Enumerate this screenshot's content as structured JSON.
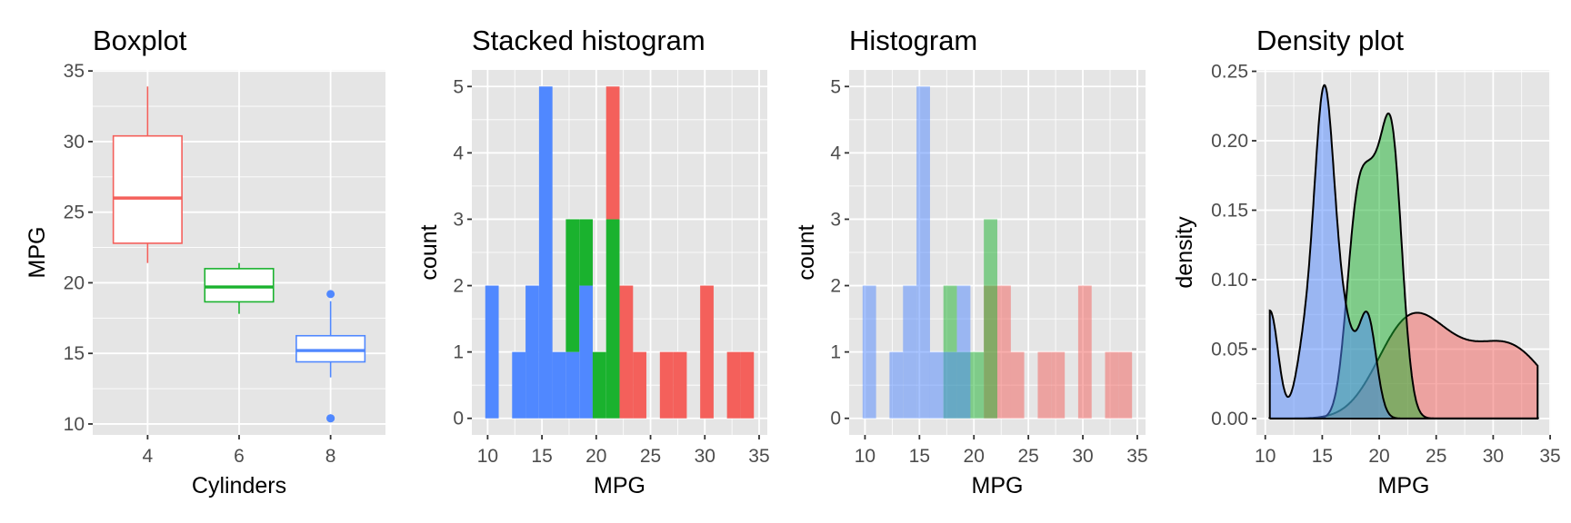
{
  "colors": {
    "cyl4": "#F4605B",
    "cyl6": "#1AB22E",
    "cyl8": "#5088FF",
    "panel_bg": "#E5E5E5",
    "grid": "#FFFFFF"
  },
  "chart_data": [
    {
      "type": "boxplot",
      "title": "Boxplot",
      "xlabel": "Cylinders",
      "ylabel": "MPG",
      "x_ticks": [
        "4",
        "6",
        "8"
      ],
      "y_ticks": [
        "10",
        "15",
        "20",
        "25",
        "30",
        "35"
      ],
      "ylim": [
        9.225,
        35.075
      ],
      "grid": true,
      "groups": [
        {
          "cyl": "4",
          "color": "#F4605B",
          "lower_whisker": 21.4,
          "q1": 22.8,
          "median": 26.0,
          "q3": 30.4,
          "upper_whisker": 33.9,
          "outliers": []
        },
        {
          "cyl": "6",
          "color": "#1AB22E",
          "lower_whisker": 17.8,
          "q1": 18.65,
          "median": 19.7,
          "q3": 21.0,
          "upper_whisker": 21.4,
          "outliers": []
        },
        {
          "cyl": "8",
          "color": "#5088FF",
          "lower_whisker": 13.3,
          "q1": 14.4,
          "median": 15.2,
          "q3": 16.25,
          "upper_whisker": 18.7,
          "outliers": [
            10.4,
            10.4,
            19.2
          ]
        }
      ]
    },
    {
      "type": "bar",
      "stacked": true,
      "title": "Stacked histogram",
      "xlabel": "MPG",
      "ylabel": "count",
      "x_ticks": [
        "10",
        "15",
        "20",
        "25",
        "30",
        "35"
      ],
      "y_ticks": [
        "0",
        "1",
        "2",
        "3",
        "4",
        "5"
      ],
      "xlim": [
        8.545,
        35.755
      ],
      "ylim": [
        -0.25,
        5.25
      ],
      "grid": true,
      "binwidth": 1.2368,
      "bin_centers": [
        10.4,
        11.64,
        12.87,
        14.11,
        15.35,
        16.58,
        17.82,
        19.06,
        20.29,
        21.53,
        22.77,
        24.0,
        25.24,
        26.48,
        27.72,
        28.95,
        30.19,
        31.43,
        32.66,
        33.9
      ],
      "series": [
        {
          "group": "8",
          "color": "#5088FF",
          "values": [
            2,
            0,
            1,
            2,
            5,
            1,
            1,
            2,
            0,
            0,
            0,
            0,
            0,
            0,
            0,
            0,
            0,
            0,
            0,
            0
          ]
        },
        {
          "group": "6",
          "color": "#1AB22E",
          "values": [
            0,
            0,
            0,
            0,
            0,
            0,
            2,
            1,
            1,
            3,
            0,
            0,
            0,
            0,
            0,
            0,
            0,
            0,
            0,
            0
          ]
        },
        {
          "group": "4",
          "color": "#F4605B",
          "values": [
            0,
            0,
            0,
            0,
            0,
            0,
            0,
            0,
            0,
            2,
            2,
            1,
            0,
            1,
            1,
            0,
            2,
            0,
            1,
            1
          ]
        }
      ]
    },
    {
      "type": "bar",
      "stacked": false,
      "alpha": 0.5,
      "title": "Histogram",
      "xlabel": "MPG",
      "ylabel": "count",
      "x_ticks": [
        "10",
        "15",
        "20",
        "25",
        "30",
        "35"
      ],
      "y_ticks": [
        "0",
        "1",
        "2",
        "3",
        "4",
        "5"
      ],
      "xlim": [
        8.545,
        35.755
      ],
      "ylim": [
        -0.25,
        5.25
      ],
      "grid": true,
      "binwidth": 1.2368,
      "bin_centers": [
        10.4,
        11.64,
        12.87,
        14.11,
        15.35,
        16.58,
        17.82,
        19.06,
        20.29,
        21.53,
        22.77,
        24.0,
        25.24,
        26.48,
        27.72,
        28.95,
        30.19,
        31.43,
        32.66,
        33.9
      ],
      "series": [
        {
          "group": "4",
          "color": "#F4605B",
          "values": [
            0,
            0,
            0,
            0,
            0,
            0,
            0,
            0,
            0,
            2,
            2,
            1,
            0,
            1,
            1,
            0,
            2,
            0,
            1,
            1
          ]
        },
        {
          "group": "6",
          "color": "#1AB22E",
          "values": [
            0,
            0,
            0,
            0,
            0,
            0,
            2,
            1,
            1,
            3,
            0,
            0,
            0,
            0,
            0,
            0,
            0,
            0,
            0,
            0
          ]
        },
        {
          "group": "8",
          "color": "#5088FF",
          "values": [
            2,
            0,
            1,
            2,
            5,
            1,
            1,
            2,
            0,
            0,
            0,
            0,
            0,
            0,
            0,
            0,
            0,
            0,
            0,
            0
          ]
        }
      ]
    },
    {
      "type": "area",
      "alpha": 0.5,
      "title": "Density plot",
      "xlabel": "MPG",
      "ylabel": "density",
      "x_ticks": [
        "10",
        "15",
        "20",
        "25",
        "30",
        "35"
      ],
      "y_ticks": [
        "0.00",
        "0.05",
        "0.10",
        "0.15",
        "0.20",
        "0.25"
      ],
      "xlim": [
        9.225,
        35.075
      ],
      "ylim": [
        -0.0118,
        0.251
      ],
      "grid": true,
      "series": [
        {
          "group": "4",
          "color": "#F4605B",
          "mpg": [
            22.8,
            24.4,
            22.8,
            32.4,
            30.4,
            33.9,
            21.5,
            27.3,
            26.0,
            30.4,
            21.4
          ]
        },
        {
          "group": "6",
          "color": "#1AB22E",
          "mpg": [
            21.0,
            21.0,
            21.4,
            18.1,
            19.2,
            17.8,
            19.7
          ]
        },
        {
          "group": "8",
          "color": "#5088FF",
          "mpg": [
            18.7,
            14.3,
            16.4,
            17.3,
            15.2,
            10.4,
            10.4,
            14.7,
            15.5,
            15.2,
            13.3,
            19.2,
            15.8,
            15.0
          ]
        }
      ]
    }
  ]
}
